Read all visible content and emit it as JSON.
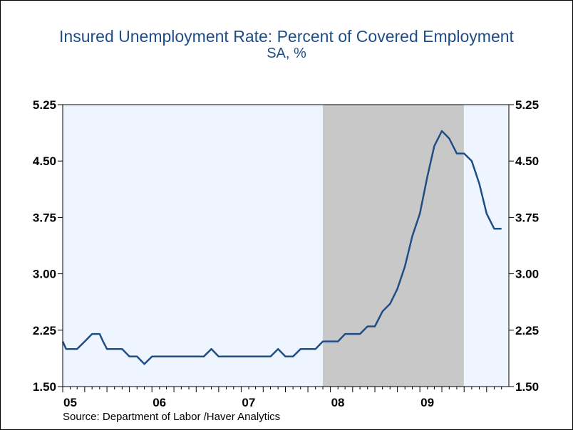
{
  "chart_data": {
    "type": "line",
    "title": "Insured Unemployment Rate: Percent of Covered Employment",
    "subtitle": "SA, %",
    "source": "Source:  Department of Labor /Haver Analytics",
    "xlabel": "",
    "ylabel": "",
    "x_range": [
      "2005-01-01",
      "2009-12-31"
    ],
    "ylim": [
      1.5,
      5.25
    ],
    "y_ticks": [
      "5.25",
      "4.50",
      "3.75",
      "3.00",
      "2.25",
      "1.50"
    ],
    "x_tick_labels": [
      {
        "label": "05",
        "date": "2005-01-01"
      },
      {
        "label": "06",
        "date": "2006-01-01"
      },
      {
        "label": "07",
        "date": "2007-01-01"
      },
      {
        "label": "08",
        "date": "2008-01-01"
      },
      {
        "label": "09",
        "date": "2009-01-01"
      }
    ],
    "recession_shading": [
      {
        "start": "2007-12-01",
        "end": "2009-06-30"
      }
    ],
    "colors": {
      "line": "#1f4e86",
      "plot_bg": "#eef5ff",
      "recession": "#c8c8c8",
      "text": "#1f4e86"
    },
    "grid": false,
    "series": [
      {
        "x": [
          "2005-01-01",
          "2005-01-15",
          "2005-02-01",
          "2005-03-01",
          "2005-04-01",
          "2005-05-01",
          "2005-06-01",
          "2005-06-15",
          "2005-07-01",
          "2005-08-01",
          "2005-09-01",
          "2005-10-01",
          "2005-11-01",
          "2005-12-01",
          "2006-01-01",
          "2006-02-01",
          "2006-03-01",
          "2006-04-01",
          "2006-05-01",
          "2006-06-01",
          "2006-06-15",
          "2006-07-01",
          "2006-08-01",
          "2006-09-01",
          "2006-10-01",
          "2006-11-01",
          "2006-12-01",
          "2007-01-01",
          "2007-02-01",
          "2007-03-01",
          "2007-04-01",
          "2007-05-01",
          "2007-06-01",
          "2007-07-01",
          "2007-08-01",
          "2007-09-01",
          "2007-10-01",
          "2007-11-01",
          "2007-12-01",
          "2008-01-01",
          "2008-02-01",
          "2008-03-01",
          "2008-04-01",
          "2008-05-01",
          "2008-06-01",
          "2008-07-01",
          "2008-08-01",
          "2008-09-01",
          "2008-10-01",
          "2008-11-01",
          "2008-12-01",
          "2009-01-01",
          "2009-02-01",
          "2009-03-01",
          "2009-04-01",
          "2009-05-01",
          "2009-06-01",
          "2009-07-01",
          "2009-08-01",
          "2009-09-01",
          "2009-10-01",
          "2009-11-01",
          "2009-12-01"
        ],
        "values": [
          2.1,
          2.0,
          2.0,
          2.0,
          2.1,
          2.2,
          2.2,
          2.1,
          2.0,
          2.0,
          2.0,
          1.9,
          1.9,
          1.8,
          1.9,
          1.9,
          1.9,
          1.9,
          1.9,
          1.9,
          1.9,
          1.9,
          1.9,
          2.0,
          1.9,
          1.9,
          1.9,
          1.9,
          1.9,
          1.9,
          1.9,
          1.9,
          2.0,
          1.9,
          1.9,
          2.0,
          2.0,
          2.0,
          2.1,
          2.1,
          2.1,
          2.2,
          2.2,
          2.2,
          2.3,
          2.3,
          2.5,
          2.6,
          2.8,
          3.1,
          3.5,
          3.8,
          4.3,
          4.7,
          4.9,
          4.8,
          4.6,
          4.6,
          4.5,
          4.2,
          3.8,
          3.6,
          3.6
        ]
      }
    ]
  }
}
